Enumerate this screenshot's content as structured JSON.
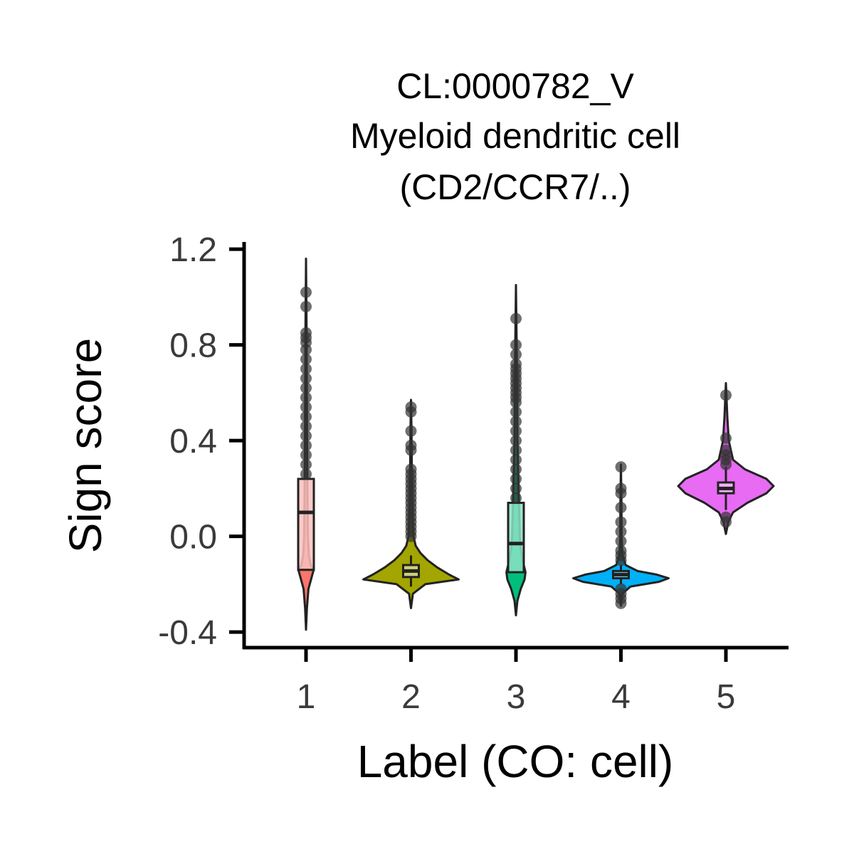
{
  "chart_data": {
    "type": "violin",
    "title_lines": [
      "CL:0000782_V",
      "Myeloid dendritic cell",
      "(CD2/CCR7/..)"
    ],
    "xlabel": "Label (CO: cell)",
    "ylabel": "Sign score",
    "categories": [
      "1",
      "2",
      "3",
      "4",
      "5"
    ],
    "ylim": [
      -0.465,
      1.23
    ],
    "yticks": [
      -0.4,
      0.0,
      0.4,
      0.8,
      1.2
    ],
    "ytick_labels": [
      "-0.4",
      "0.0",
      "0.4",
      "0.8",
      "1.2"
    ],
    "grid": false,
    "legend": "none",
    "groups": [
      {
        "label": "1",
        "color": "#F8766D",
        "min": -0.39,
        "max": 1.16,
        "q1": -0.14,
        "median": 0.1,
        "q3": 0.24,
        "whisker_low": -0.14,
        "whisker_high": 0.24,
        "outliers": [
          0.26,
          0.3,
          0.34,
          0.38,
          0.42,
          0.46,
          0.5,
          0.54,
          0.58,
          0.62,
          0.66,
          0.7,
          0.74,
          0.78,
          0.81,
          0.83,
          0.85,
          0.96,
          1.02
        ],
        "density": [
          [
            -0.39,
            0.0
          ],
          [
            -0.3,
            0.02
          ],
          [
            -0.22,
            0.05
          ],
          [
            -0.17,
            0.12
          ],
          [
            -0.14,
            0.16
          ],
          [
            -0.12,
            0.1
          ],
          [
            -0.08,
            0.06
          ],
          [
            0.0,
            0.04
          ],
          [
            0.1,
            0.035
          ],
          [
            0.2,
            0.03
          ],
          [
            0.3,
            0.025
          ],
          [
            0.5,
            0.02
          ],
          [
            0.7,
            0.015
          ],
          [
            0.9,
            0.01
          ],
          [
            1.16,
            0.0
          ]
        ]
      },
      {
        "label": "2",
        "color": "#A3A500",
        "min": -0.3,
        "max": 0.57,
        "q1": -0.17,
        "median": -0.145,
        "q3": -0.12,
        "whisker_low": -0.21,
        "whisker_high": -0.08,
        "outliers": [
          0.0,
          0.02,
          0.04,
          0.06,
          0.08,
          0.1,
          0.12,
          0.14,
          0.16,
          0.18,
          0.2,
          0.22,
          0.24,
          0.26,
          0.28,
          0.36,
          0.38,
          0.44,
          0.52,
          0.54
        ],
        "density": [
          [
            -0.3,
            0.0
          ],
          [
            -0.24,
            0.04
          ],
          [
            -0.2,
            0.3
          ],
          [
            -0.18,
            1.0
          ],
          [
            -0.16,
            0.8
          ],
          [
            -0.13,
            0.55
          ],
          [
            -0.1,
            0.35
          ],
          [
            -0.07,
            0.2
          ],
          [
            -0.04,
            0.1
          ],
          [
            0.0,
            0.05
          ],
          [
            0.1,
            0.03
          ],
          [
            0.25,
            0.02
          ],
          [
            0.45,
            0.01
          ],
          [
            0.57,
            0.0
          ]
        ]
      },
      {
        "label": "3",
        "color": "#00BF7D",
        "min": -0.33,
        "max": 1.05,
        "q1": -0.15,
        "median": -0.03,
        "q3": 0.14,
        "whisker_low": -0.15,
        "whisker_high": 0.14,
        "outliers": [
          0.16,
          0.2,
          0.24,
          0.28,
          0.32,
          0.36,
          0.4,
          0.44,
          0.48,
          0.52,
          0.56,
          0.58,
          0.6,
          0.62,
          0.64,
          0.66,
          0.68,
          0.7,
          0.72,
          0.76,
          0.8,
          0.91
        ],
        "density": [
          [
            -0.33,
            0.0
          ],
          [
            -0.27,
            0.03
          ],
          [
            -0.22,
            0.1
          ],
          [
            -0.18,
            0.18
          ],
          [
            -0.15,
            0.2
          ],
          [
            -0.1,
            0.14
          ],
          [
            -0.05,
            0.1
          ],
          [
            0.0,
            0.08
          ],
          [
            0.08,
            0.07
          ],
          [
            0.16,
            0.06
          ],
          [
            0.24,
            0.05
          ],
          [
            0.4,
            0.03
          ],
          [
            0.6,
            0.025
          ],
          [
            0.8,
            0.015
          ],
          [
            1.05,
            0.0
          ]
        ]
      },
      {
        "label": "4",
        "color": "#00B0F6",
        "min": -0.29,
        "max": 0.3,
        "q1": -0.175,
        "median": -0.16,
        "q3": -0.145,
        "whisker_low": -0.2,
        "whisker_high": -0.12,
        "outliers": [
          -0.28,
          -0.26,
          -0.24,
          -0.22,
          -0.1,
          -0.08,
          -0.06,
          -0.02,
          0.02,
          0.06,
          0.12,
          0.18,
          0.2,
          0.29
        ],
        "density": [
          [
            -0.29,
            0.0
          ],
          [
            -0.24,
            0.03
          ],
          [
            -0.21,
            0.2
          ],
          [
            -0.19,
            0.8
          ],
          [
            -0.175,
            1.0
          ],
          [
            -0.16,
            0.75
          ],
          [
            -0.145,
            0.35
          ],
          [
            -0.12,
            0.1
          ],
          [
            -0.08,
            0.03
          ],
          [
            0.0,
            0.015
          ],
          [
            0.15,
            0.01
          ],
          [
            0.3,
            0.0
          ]
        ]
      },
      {
        "label": "5",
        "color": "#E76BF3",
        "min": 0.01,
        "max": 0.64,
        "q1": 0.18,
        "median": 0.2,
        "q3": 0.225,
        "whisker_low": 0.11,
        "whisker_high": 0.29,
        "outliers": [
          0.06,
          0.08,
          0.3,
          0.32,
          0.34,
          0.36,
          0.41,
          0.59
        ],
        "density": [
          [
            0.01,
            0.0
          ],
          [
            0.06,
            0.05
          ],
          [
            0.1,
            0.15
          ],
          [
            0.14,
            0.45
          ],
          [
            0.18,
            0.85
          ],
          [
            0.21,
            1.0
          ],
          [
            0.24,
            0.85
          ],
          [
            0.28,
            0.4
          ],
          [
            0.32,
            0.15
          ],
          [
            0.4,
            0.06
          ],
          [
            0.5,
            0.03
          ],
          [
            0.64,
            0.0
          ]
        ]
      }
    ]
  }
}
